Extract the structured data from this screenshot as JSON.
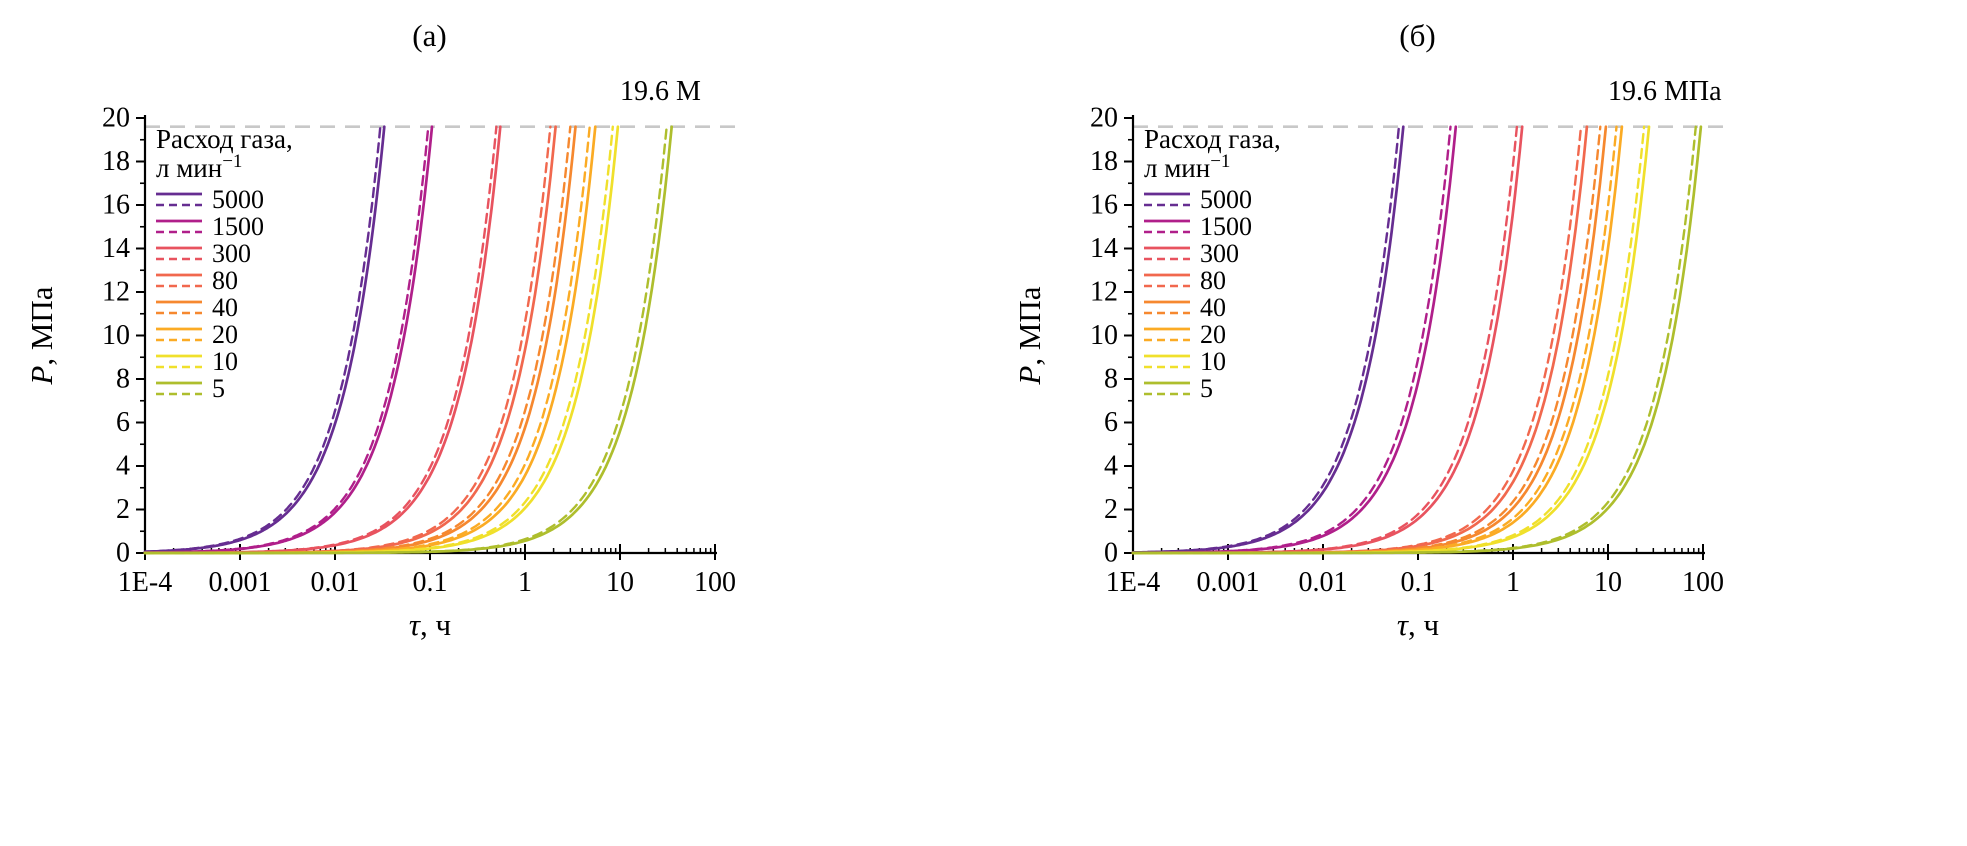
{
  "figure": {
    "background": "#ffffff",
    "axis_color": "#000000",
    "text_color": "#000000"
  },
  "chart_data": [
    {
      "type": "line",
      "panel_title": "(а)",
      "xscale": "log",
      "xlim": [
        0.0001,
        100
      ],
      "ylim": [
        0,
        20
      ],
      "grid": false,
      "xlabel_italic": "τ",
      "xlabel_rest": ", ч",
      "ylabel_italic": "P",
      "ylabel_rest": ", МПа",
      "xtick_labels": [
        "1E-4",
        "0.001",
        "0.01",
        "0.1",
        "1",
        "10",
        "100"
      ],
      "xtick_values": [
        0.0001,
        0.001,
        0.01,
        0.1,
        1,
        10,
        100
      ],
      "yticks": [
        0,
        2,
        4,
        6,
        8,
        10,
        12,
        14,
        16,
        18,
        20
      ],
      "pressure_limit_MPa": 19.6,
      "limit_label": "19.6 М",
      "limit_line_color": "#c8c8c8",
      "legend_position": "top-left",
      "legend_title_line1": "Расход газа,",
      "legend_unit_base": "л мин",
      "legend_unit_sup": "−1",
      "model": "P(τ) = 19.6·min(τ/t_fill, 1) МПа; solid and dashed curves are two model variants per flow rate",
      "series": [
        {
          "label": "5000",
          "color": "#662d91",
          "t_fill_solid_h": 0.033,
          "t_fill_dashed_h": 0.03
        },
        {
          "label": "1500",
          "color": "#b01f8a",
          "t_fill_solid_h": 0.105,
          "t_fill_dashed_h": 0.096
        },
        {
          "label": "300",
          "color": "#e8535f",
          "t_fill_solid_h": 0.55,
          "t_fill_dashed_h": 0.5
        },
        {
          "label": "80",
          "color": "#f1684e",
          "t_fill_solid_h": 2.1,
          "t_fill_dashed_h": 1.85
        },
        {
          "label": "40",
          "color": "#f6882f",
          "t_fill_solid_h": 3.4,
          "t_fill_dashed_h": 3.0
        },
        {
          "label": "20",
          "color": "#fbab24",
          "t_fill_solid_h": 5.5,
          "t_fill_dashed_h": 4.8
        },
        {
          "label": "10",
          "color": "#f0e02b",
          "t_fill_solid_h": 9.5,
          "t_fill_dashed_h": 8.4
        },
        {
          "label": "5",
          "color": "#aebe2d",
          "t_fill_solid_h": 35,
          "t_fill_dashed_h": 31
        }
      ]
    },
    {
      "type": "line",
      "panel_title": "(б)",
      "xscale": "log",
      "xlim": [
        0.0001,
        100
      ],
      "ylim": [
        0,
        20
      ],
      "grid": false,
      "xlabel_italic": "τ",
      "xlabel_rest": ", ч",
      "ylabel_italic": "P",
      "ylabel_rest": ", МПа",
      "xtick_labels": [
        "1E-4",
        "0.001",
        "0.01",
        "0.1",
        "1",
        "10",
        "100"
      ],
      "xtick_values": [
        0.0001,
        0.001,
        0.01,
        0.1,
        1,
        10,
        100
      ],
      "yticks": [
        0,
        2,
        4,
        6,
        8,
        10,
        12,
        14,
        16,
        18,
        20
      ],
      "pressure_limit_MPa": 19.6,
      "limit_label": "19.6 МПа",
      "limit_line_color": "#c8c8c8",
      "legend_position": "top-left",
      "legend_title_line1": "Расход газа,",
      "legend_unit_base": "л мин",
      "legend_unit_sup": "−1",
      "model": "P(τ) = 19.6·min(τ/t_fill, 1) МПа; solid and dashed curves are two model variants per flow rate",
      "series": [
        {
          "label": "5000",
          "color": "#662d91",
          "t_fill_solid_h": 0.07,
          "t_fill_dashed_h": 0.063
        },
        {
          "label": "1500",
          "color": "#b01f8a",
          "t_fill_solid_h": 0.25,
          "t_fill_dashed_h": 0.22
        },
        {
          "label": "300",
          "color": "#e8535f",
          "t_fill_solid_h": 1.25,
          "t_fill_dashed_h": 1.1
        },
        {
          "label": "80",
          "color": "#f1684e",
          "t_fill_solid_h": 6.0,
          "t_fill_dashed_h": 5.2
        },
        {
          "label": "40",
          "color": "#f6882f",
          "t_fill_solid_h": 9.5,
          "t_fill_dashed_h": 8.3
        },
        {
          "label": "20",
          "color": "#fbab24",
          "t_fill_solid_h": 14.0,
          "t_fill_dashed_h": 12.3
        },
        {
          "label": "10",
          "color": "#f0e02b",
          "t_fill_solid_h": 27.0,
          "t_fill_dashed_h": 24.0
        },
        {
          "label": "5",
          "color": "#aebe2d",
          "t_fill_solid_h": 95.0,
          "t_fill_dashed_h": 84.0
        }
      ]
    }
  ]
}
